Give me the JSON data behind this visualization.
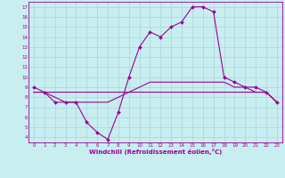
{
  "xlabel": "Windchill (Refroidissement éolien,°C)",
  "background_color": "#c8eef0",
  "line_color": "#990099",
  "grid_color": "#aad4d8",
  "xlim": [
    -0.5,
    23.5
  ],
  "ylim": [
    3.5,
    17.5
  ],
  "yticks": [
    4,
    5,
    6,
    7,
    8,
    9,
    10,
    11,
    12,
    13,
    14,
    15,
    16,
    17
  ],
  "xticks": [
    0,
    1,
    2,
    3,
    4,
    5,
    6,
    7,
    8,
    9,
    10,
    11,
    12,
    13,
    14,
    15,
    16,
    17,
    18,
    19,
    20,
    21,
    22,
    23
  ],
  "series_flat": {
    "x": [
      0,
      1,
      2,
      3,
      4,
      5,
      6,
      7,
      8,
      9,
      10,
      11,
      12,
      13,
      14,
      15,
      16,
      17,
      18,
      19,
      20,
      21,
      22,
      23
    ],
    "y": [
      8.5,
      8.5,
      8.5,
      8.5,
      8.5,
      8.5,
      8.5,
      8.5,
      8.5,
      8.5,
      8.5,
      8.5,
      8.5,
      8.5,
      8.5,
      8.5,
      8.5,
      8.5,
      8.5,
      8.5,
      8.5,
      8.5,
      8.5,
      7.5
    ]
  },
  "series_mid": {
    "x": [
      0,
      1,
      2,
      3,
      4,
      5,
      6,
      7,
      8,
      9,
      10,
      11,
      12,
      13,
      14,
      15,
      16,
      17,
      18,
      19,
      20,
      21,
      22,
      23
    ],
    "y": [
      8.5,
      8.5,
      8.0,
      7.5,
      7.5,
      7.5,
      7.5,
      7.5,
      8.0,
      8.5,
      9.0,
      9.5,
      9.5,
      9.5,
      9.5,
      9.5,
      9.5,
      9.5,
      9.5,
      9.0,
      9.0,
      8.5,
      8.5,
      7.5
    ]
  },
  "series_main": {
    "x": [
      0,
      1,
      2,
      3,
      4,
      5,
      6,
      7,
      8,
      9,
      10,
      11,
      12,
      13,
      14,
      15,
      16,
      17,
      18,
      19,
      20,
      21,
      22,
      23
    ],
    "y": [
      9.0,
      8.5,
      7.5,
      7.5,
      7.5,
      5.5,
      4.5,
      3.8,
      6.5,
      10.0,
      13.0,
      14.5,
      14.0,
      15.0,
      15.5,
      17.0,
      17.0,
      16.5,
      10.0,
      9.5,
      9.0,
      9.0,
      8.5,
      7.5
    ]
  }
}
